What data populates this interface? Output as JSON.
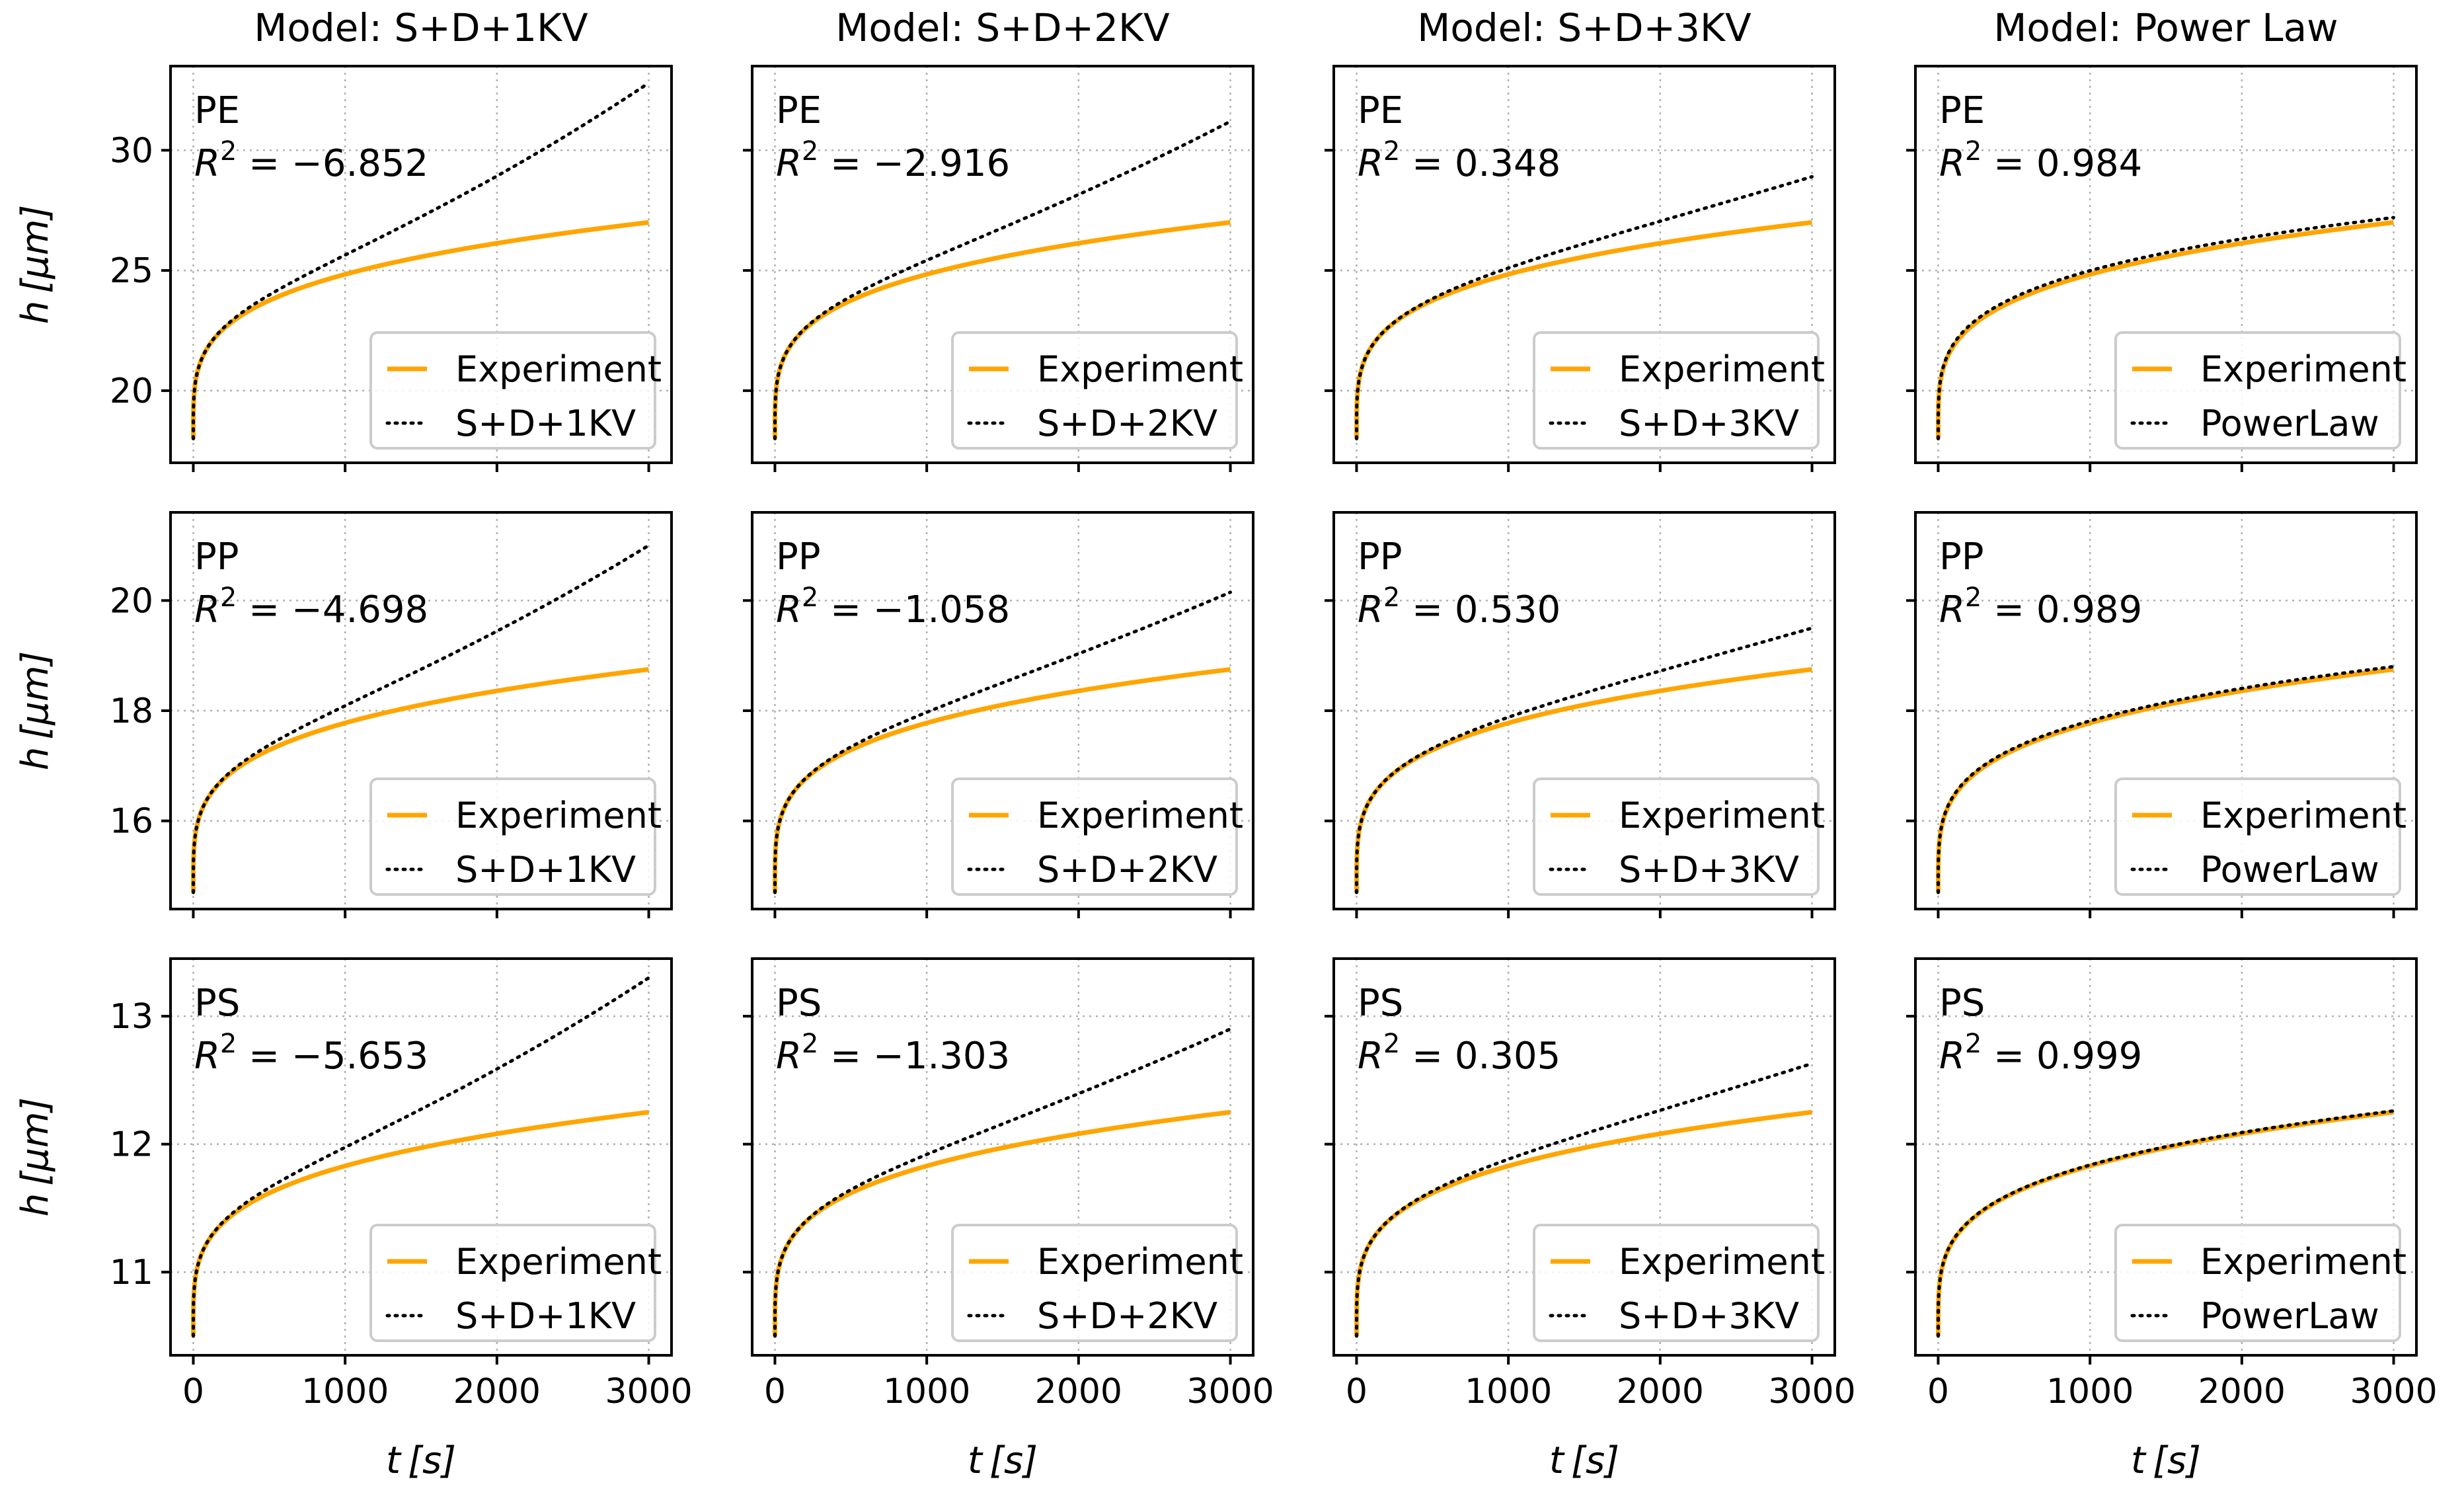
{
  "figure": {
    "column_titles": [
      "Model: S+D+1KV",
      "Model: S+D+2KV",
      "Model: S+D+3KV",
      "Model: Power Law"
    ],
    "y_axis_label": "h [μm]",
    "x_axis_label": "t [s]",
    "legend_experiment": "Experiment",
    "r2_prefix": "R",
    "r2_sup": "2"
  },
  "colors": {
    "experiment": "#ffa500",
    "model": "#000000",
    "grid": "#b0b0b0",
    "legend_border": "#cccccc"
  },
  "chart_data": [
    {
      "type": "line",
      "material": "PE",
      "model": "S+D+1KV",
      "title": "Model: S+D+1KV",
      "r2": "−6.852",
      "legend_model": "S+D+1KV",
      "xlim": [
        -150,
        3150
      ],
      "ylim": [
        17,
        33.5
      ],
      "yticks": [
        20,
        25,
        30
      ],
      "xticks": [
        0,
        1000,
        2000,
        3000
      ],
      "a": 18,
      "b": 27,
      "p": 0.25,
      "model_type": "kv",
      "model_end": 32.8,
      "ylabel": "h [μm]",
      "xlabel": "t [s]"
    },
    {
      "type": "line",
      "material": "PE",
      "model": "S+D+2KV",
      "title": "Model: S+D+2KV",
      "r2": "−2.916",
      "legend_model": "S+D+2KV",
      "xlim": [
        -150,
        3150
      ],
      "ylim": [
        17,
        33.5
      ],
      "yticks": [
        20,
        25,
        30
      ],
      "xticks": [
        0,
        1000,
        2000,
        3000
      ],
      "a": 18,
      "b": 27,
      "p": 0.25,
      "model_type": "kv",
      "model_end": 31.2,
      "ylabel": "h [μm]",
      "xlabel": "t [s]"
    },
    {
      "type": "line",
      "material": "PE",
      "model": "S+D+3KV",
      "title": "Model: S+D+3KV",
      "r2": "0.348",
      "legend_model": "S+D+3KV",
      "xlim": [
        -150,
        3150
      ],
      "ylim": [
        17,
        33.5
      ],
      "yticks": [
        20,
        25,
        30
      ],
      "xticks": [
        0,
        1000,
        2000,
        3000
      ],
      "a": 18,
      "b": 27,
      "p": 0.25,
      "model_type": "kv",
      "model_end": 28.9,
      "ylabel": "h [μm]",
      "xlabel": "t [s]"
    },
    {
      "type": "line",
      "material": "PE",
      "model": "Power Law",
      "title": "Model: Power Law",
      "r2": "0.984",
      "legend_model": "PowerLaw",
      "xlim": [
        -150,
        3150
      ],
      "ylim": [
        17,
        33.5
      ],
      "yticks": [
        20,
        25,
        30
      ],
      "xticks": [
        0,
        1000,
        2000,
        3000
      ],
      "a": 18,
      "b": 27,
      "p": 0.25,
      "model_type": "power",
      "model_end": 27.2,
      "ylabel": "h [μm]",
      "xlabel": "t [s]"
    },
    {
      "type": "line",
      "material": "PP",
      "model": "S+D+1KV",
      "title": "Model: S+D+1KV",
      "r2": "−4.698",
      "legend_model": "S+D+1KV",
      "xlim": [
        -150,
        3150
      ],
      "ylim": [
        14.4,
        21.6
      ],
      "yticks": [
        16,
        18,
        20
      ],
      "xticks": [
        0,
        1000,
        2000,
        3000
      ],
      "a": 14.7,
      "b": 18.75,
      "p": 0.25,
      "model_type": "kv",
      "model_end": 21.0,
      "ylabel": "h [μm]",
      "xlabel": "t [s]"
    },
    {
      "type": "line",
      "material": "PP",
      "model": "S+D+2KV",
      "title": "Model: S+D+2KV",
      "r2": "−1.058",
      "legend_model": "S+D+2KV",
      "xlim": [
        -150,
        3150
      ],
      "ylim": [
        14.4,
        21.6
      ],
      "yticks": [
        16,
        18,
        20
      ],
      "xticks": [
        0,
        1000,
        2000,
        3000
      ],
      "a": 14.7,
      "b": 18.75,
      "p": 0.25,
      "model_type": "kv",
      "model_end": 20.15,
      "ylabel": "h [μm]",
      "xlabel": "t [s]"
    },
    {
      "type": "line",
      "material": "PP",
      "model": "S+D+3KV",
      "title": "Model: S+D+3KV",
      "r2": "0.530",
      "legend_model": "S+D+3KV",
      "xlim": [
        -150,
        3150
      ],
      "ylim": [
        14.4,
        21.6
      ],
      "yticks": [
        16,
        18,
        20
      ],
      "xticks": [
        0,
        1000,
        2000,
        3000
      ],
      "a": 14.7,
      "b": 18.75,
      "p": 0.25,
      "model_type": "kv",
      "model_end": 19.5,
      "ylabel": "h [μm]",
      "xlabel": "t [s]"
    },
    {
      "type": "line",
      "material": "PP",
      "model": "Power Law",
      "title": "Model: Power Law",
      "r2": "0.989",
      "legend_model": "PowerLaw",
      "xlim": [
        -150,
        3150
      ],
      "ylim": [
        14.4,
        21.6
      ],
      "yticks": [
        16,
        18,
        20
      ],
      "xticks": [
        0,
        1000,
        2000,
        3000
      ],
      "a": 14.7,
      "b": 18.75,
      "p": 0.25,
      "model_type": "power",
      "model_end": 18.8,
      "ylabel": "h [μm]",
      "xlabel": "t [s]"
    },
    {
      "type": "line",
      "material": "PS",
      "model": "S+D+1KV",
      "title": "Model: S+D+1KV",
      "r2": "−5.653",
      "legend_model": "S+D+1KV",
      "xlim": [
        -150,
        3150
      ],
      "ylim": [
        10.35,
        13.45
      ],
      "yticks": [
        11,
        12,
        13
      ],
      "xticks": [
        0,
        1000,
        2000,
        3000
      ],
      "a": 10.5,
      "b": 12.25,
      "p": 0.25,
      "model_type": "kv",
      "model_end": 13.3,
      "ylabel": "h [μm]",
      "xlabel": "t [s]"
    },
    {
      "type": "line",
      "material": "PS",
      "model": "S+D+2KV",
      "title": "Model: S+D+2KV",
      "r2": "−1.303",
      "legend_model": "S+D+2KV",
      "xlim": [
        -150,
        3150
      ],
      "ylim": [
        10.35,
        13.45
      ],
      "yticks": [
        11,
        12,
        13
      ],
      "xticks": [
        0,
        1000,
        2000,
        3000
      ],
      "a": 10.5,
      "b": 12.25,
      "p": 0.25,
      "model_type": "kv",
      "model_end": 12.9,
      "ylabel": "h [μm]",
      "xlabel": "t [s]"
    },
    {
      "type": "line",
      "material": "PS",
      "model": "S+D+3KV",
      "title": "Model: S+D+3KV",
      "r2": "0.305",
      "legend_model": "S+D+3KV",
      "xlim": [
        -150,
        3150
      ],
      "ylim": [
        10.35,
        13.45
      ],
      "yticks": [
        11,
        12,
        13
      ],
      "xticks": [
        0,
        1000,
        2000,
        3000
      ],
      "a": 10.5,
      "b": 12.25,
      "p": 0.25,
      "model_type": "kv",
      "model_end": 12.63,
      "ylabel": "h [μm]",
      "xlabel": "t [s]"
    },
    {
      "type": "line",
      "material": "PS",
      "model": "Power Law",
      "title": "Model: Power Law",
      "r2": "0.999",
      "legend_model": "PowerLaw",
      "xlim": [
        -150,
        3150
      ],
      "ylim": [
        10.35,
        13.45
      ],
      "yticks": [
        11,
        12,
        13
      ],
      "xticks": [
        0,
        1000,
        2000,
        3000
      ],
      "a": 10.5,
      "b": 12.25,
      "p": 0.25,
      "model_type": "power",
      "model_end": 12.26,
      "ylabel": "h [μm]",
      "xlabel": "t [s]"
    }
  ]
}
